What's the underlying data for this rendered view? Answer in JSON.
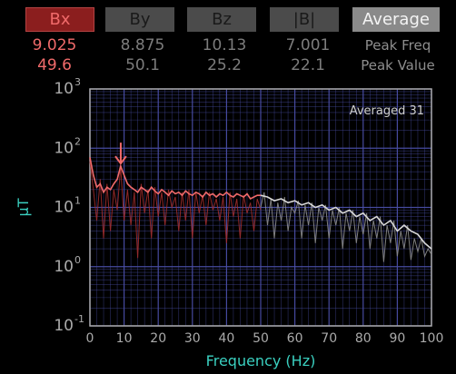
{
  "tabs": [
    {
      "label": "Bx",
      "style": "bx",
      "active": true
    },
    {
      "label": "By",
      "style": "dim",
      "active": false
    },
    {
      "label": "Bz",
      "style": "dim",
      "active": false
    },
    {
      "label": "|B|",
      "style": "dim",
      "active": false
    },
    {
      "label": "Average",
      "style": "avg",
      "active": true
    }
  ],
  "readings": {
    "peak_freq": [
      "9.025",
      "8.875",
      "10.13",
      "7.001"
    ],
    "peak_value": [
      "49.6",
      "50.1",
      "25.2",
      "22.1"
    ],
    "peak_freq_label": "Peak Freq",
    "peak_value_label": "Peak Value"
  },
  "badge": "Averaged 31",
  "colors": {
    "bx": "#f06a6a",
    "grid": "#4a4fa8",
    "axis": "#aaaaaa",
    "accent": "#3ad0c0"
  },
  "chart_data": {
    "type": "line",
    "xlabel": "Frequency (Hz)",
    "ylabel": "μT",
    "x_ticks": [
      "0",
      "10",
      "20",
      "30",
      "40",
      "50",
      "60",
      "70",
      "80",
      "90",
      "100"
    ],
    "y_ticks": [
      {
        "base": "10",
        "exp": "3",
        "value": 1000
      },
      {
        "base": "10",
        "exp": "2",
        "value": 100
      },
      {
        "base": "10",
        "exp": "1",
        "value": 10
      },
      {
        "base": "10",
        "exp": "0",
        "value": 1
      },
      {
        "base": "10",
        "exp": "-1",
        "value": 0.1
      }
    ],
    "xlim": [
      0,
      100
    ],
    "ylim": [
      0.1,
      1000
    ],
    "y_scale": "log",
    "grid": true,
    "peak_marker": {
      "x": 9.025,
      "y": 49.6
    },
    "series": [
      {
        "color": "#f06a6a",
        "averaged": [
          [
            0,
            70
          ],
          [
            1,
            35
          ],
          [
            2,
            22
          ],
          [
            3,
            25
          ],
          [
            4,
            18
          ],
          [
            5,
            22
          ],
          [
            6,
            20
          ],
          [
            7,
            25
          ],
          [
            8,
            30
          ],
          [
            9,
            50
          ],
          [
            10,
            35
          ],
          [
            11,
            25
          ],
          [
            12,
            22
          ],
          [
            13,
            20
          ],
          [
            14,
            18
          ],
          [
            15,
            22
          ],
          [
            16,
            20
          ],
          [
            17,
            18
          ],
          [
            18,
            22
          ],
          [
            19,
            19
          ],
          [
            20,
            17
          ],
          [
            21,
            20
          ],
          [
            22,
            18
          ],
          [
            23,
            16
          ],
          [
            24,
            19
          ],
          [
            25,
            17
          ],
          [
            26,
            18
          ],
          [
            27,
            16
          ],
          [
            28,
            19
          ],
          [
            29,
            17
          ],
          [
            30,
            16
          ],
          [
            31,
            18
          ],
          [
            32,
            17
          ],
          [
            33,
            15
          ],
          [
            34,
            18
          ],
          [
            35,
            16
          ],
          [
            36,
            17
          ],
          [
            37,
            15
          ],
          [
            38,
            17
          ],
          [
            39,
            16
          ],
          [
            40,
            18
          ],
          [
            41,
            16
          ],
          [
            42,
            15
          ],
          [
            43,
            17
          ],
          [
            44,
            16
          ],
          [
            45,
            15
          ],
          [
            46,
            17
          ],
          [
            47,
            14
          ],
          [
            48,
            15
          ],
          [
            49,
            16
          ],
          [
            50,
            16
          ]
        ],
        "raw": [
          [
            0,
            60
          ],
          [
            1,
            20
          ],
          [
            2,
            6
          ],
          [
            3,
            30
          ],
          [
            4,
            3
          ],
          [
            5,
            25
          ],
          [
            6,
            4
          ],
          [
            7,
            20
          ],
          [
            8,
            9
          ],
          [
            9,
            49
          ],
          [
            10,
            6
          ],
          [
            11,
            20
          ],
          [
            12,
            5
          ],
          [
            13,
            18
          ],
          [
            14,
            1.4
          ],
          [
            15,
            25
          ],
          [
            16,
            8
          ],
          [
            17,
            20
          ],
          [
            18,
            3
          ],
          [
            19,
            22
          ],
          [
            20,
            7
          ],
          [
            21,
            18
          ],
          [
            22,
            5
          ],
          [
            23,
            20
          ],
          [
            24,
            10
          ],
          [
            25,
            15
          ],
          [
            26,
            4
          ],
          [
            27,
            18
          ],
          [
            28,
            6
          ],
          [
            29,
            20
          ],
          [
            30,
            3
          ],
          [
            31,
            18
          ],
          [
            32,
            8
          ],
          [
            33,
            16
          ],
          [
            34,
            5
          ],
          [
            35,
            18
          ],
          [
            36,
            9
          ],
          [
            37,
            14
          ],
          [
            38,
            6
          ],
          [
            39,
            15
          ],
          [
            40,
            2.5
          ],
          [
            41,
            18
          ],
          [
            42,
            7
          ],
          [
            43,
            14
          ],
          [
            44,
            3
          ],
          [
            45,
            16
          ],
          [
            46,
            8
          ],
          [
            47,
            12
          ],
          [
            48,
            4
          ],
          [
            49,
            14
          ],
          [
            50,
            9
          ]
        ]
      },
      {
        "color": "#d8d8d8",
        "averaged": [
          [
            50,
            16
          ],
          [
            52,
            15
          ],
          [
            54,
            13
          ],
          [
            56,
            14
          ],
          [
            58,
            12
          ],
          [
            60,
            13
          ],
          [
            62,
            11
          ],
          [
            64,
            12
          ],
          [
            66,
            10
          ],
          [
            68,
            11
          ],
          [
            70,
            9
          ],
          [
            72,
            10
          ],
          [
            74,
            8
          ],
          [
            76,
            9
          ],
          [
            78,
            7
          ],
          [
            80,
            8
          ],
          [
            82,
            6
          ],
          [
            84,
            7
          ],
          [
            86,
            5
          ],
          [
            88,
            6
          ],
          [
            90,
            4
          ],
          [
            92,
            5
          ],
          [
            94,
            4
          ],
          [
            96,
            3.5
          ],
          [
            98,
            2.5
          ],
          [
            100,
            2
          ]
        ],
        "raw": [
          [
            50,
            10
          ],
          [
            51,
            18
          ],
          [
            52,
            5
          ],
          [
            53,
            14
          ],
          [
            54,
            3
          ],
          [
            55,
            12
          ],
          [
            56,
            6
          ],
          [
            57,
            15
          ],
          [
            58,
            4
          ],
          [
            59,
            10
          ],
          [
            60,
            8
          ],
          [
            61,
            13
          ],
          [
            62,
            3
          ],
          [
            63,
            11
          ],
          [
            64,
            5
          ],
          [
            65,
            12
          ],
          [
            66,
            2.5
          ],
          [
            67,
            10
          ],
          [
            68,
            6
          ],
          [
            69,
            11
          ],
          [
            70,
            3
          ],
          [
            71,
            9
          ],
          [
            72,
            5
          ],
          [
            73,
            10
          ],
          [
            74,
            2
          ],
          [
            75,
            8
          ],
          [
            76,
            4
          ],
          [
            77,
            9
          ],
          [
            78,
            2.5
          ],
          [
            79,
            7
          ],
          [
            80,
            3.5
          ],
          [
            81,
            8
          ],
          [
            82,
            2
          ],
          [
            83,
            6
          ],
          [
            84,
            3
          ],
          [
            85,
            7
          ],
          [
            86,
            1.2
          ],
          [
            87,
            5
          ],
          [
            88,
            2.5
          ],
          [
            89,
            6
          ],
          [
            90,
            1.5
          ],
          [
            91,
            4
          ],
          [
            92,
            2
          ],
          [
            93,
            5
          ],
          [
            94,
            1.3
          ],
          [
            95,
            3
          ],
          [
            96,
            1.8
          ],
          [
            97,
            3
          ],
          [
            98,
            1.5
          ],
          [
            99,
            2
          ],
          [
            100,
            1.6
          ]
        ]
      }
    ]
  }
}
